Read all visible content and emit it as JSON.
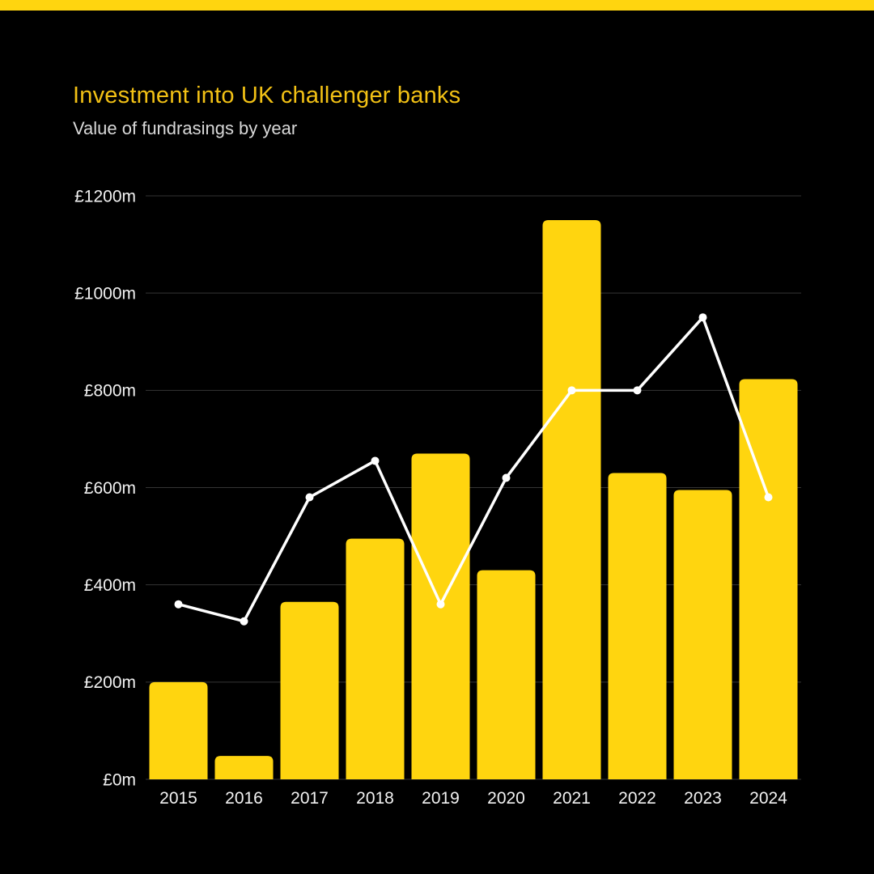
{
  "header": {
    "title": "Investment into UK challenger banks",
    "subtitle": "Value of fundrasings by year"
  },
  "colors": {
    "background": "#000000",
    "banner": "#FFD50F",
    "bar": "#FFD50F",
    "title_text": "#F2C115",
    "subtitle_text": "#D9D9D9",
    "axis_text": "#F2F2F2",
    "gridline": "#343434",
    "line": "#FFFFFF",
    "dot": "#FFFFFF"
  },
  "chart_data": {
    "type": "bar",
    "title": "Investment into UK challenger banks",
    "subtitle": "Value of fundrasings by year",
    "categories": [
      "2015",
      "2016",
      "2017",
      "2018",
      "2019",
      "2020",
      "2021",
      "2022",
      "2023",
      "2024"
    ],
    "series": [
      {
        "name": "bars-fundraising-value",
        "type": "bar",
        "values": [
          200,
          48,
          365,
          495,
          670,
          430,
          1150,
          630,
          595,
          823
        ]
      },
      {
        "name": "line-overlay",
        "type": "line",
        "values": [
          360,
          325,
          580,
          655,
          360,
          620,
          800,
          800,
          950,
          580
        ]
      }
    ],
    "ylim": [
      0,
      1200
    ],
    "yticks": [
      {
        "value": 0,
        "label": "£0m"
      },
      {
        "value": 200,
        "label": "£200m"
      },
      {
        "value": 400,
        "label": "£400m"
      },
      {
        "value": 600,
        "label": "£600m"
      },
      {
        "value": 800,
        "label": "£800m"
      },
      {
        "value": 1000,
        "label": "£1000m"
      },
      {
        "value": 1200,
        "label": "£1200m"
      }
    ],
    "grid": "horizontal",
    "legend": "none",
    "units": "GBP millions"
  }
}
